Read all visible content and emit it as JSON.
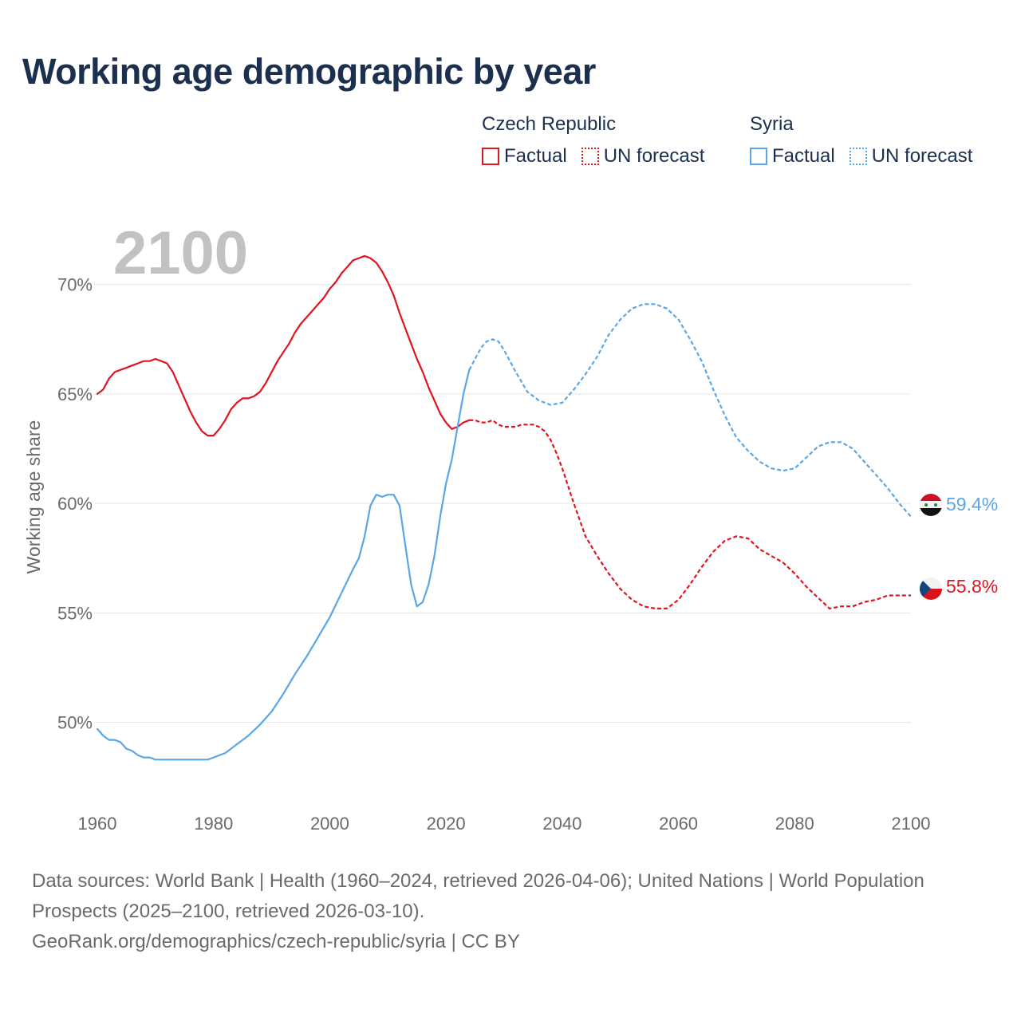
{
  "title": "Working age demographic by year",
  "legend": {
    "groups": [
      {
        "name": "Czech Republic",
        "color": "#e0141e",
        "items": [
          {
            "label": "Factual",
            "style": "solid"
          },
          {
            "label": "UN forecast",
            "style": "dotted"
          }
        ]
      },
      {
        "name": "Syria",
        "color": "#5aa6e6",
        "items": [
          {
            "label": "Factual",
            "style": "solid"
          },
          {
            "label": "UN forecast",
            "style": "dotted"
          }
        ]
      }
    ]
  },
  "year_watermark": "2100",
  "source": {
    "line1": "Data sources: World Bank | Health (1960–2024, retrieved 2026-04-06); United Nations | World Population Prospects (2025–2100, retrieved 2026-03-10).",
    "line2": "GeoRank.org/demographics/czech-republic/syria | CC BY"
  },
  "chart_data": {
    "type": "line",
    "title": "Working age demographic by year",
    "xlabel": "",
    "ylabel": "Working age share",
    "xlim": [
      1960,
      2100
    ],
    "ylim": [
      46.2,
      72.5
    ],
    "x_ticks": [
      1960,
      1980,
      2000,
      2020,
      2040,
      2060,
      2080,
      2100
    ],
    "y_ticks": [
      50,
      55,
      60,
      65,
      70
    ],
    "y_tick_labels": [
      "50%",
      "55%",
      "60%",
      "65%",
      "70%"
    ],
    "grid": true,
    "series": [
      {
        "name": "Czech Republic",
        "color": "#e0141e",
        "end_label": "55.8%",
        "factual": {
          "x": [
            1960,
            1961,
            1962,
            1963,
            1964,
            1965,
            1966,
            1967,
            1968,
            1969,
            1970,
            1971,
            1972,
            1973,
            1974,
            1975,
            1976,
            1977,
            1978,
            1979,
            1980,
            1981,
            1982,
            1983,
            1984,
            1985,
            1986,
            1987,
            1988,
            1989,
            1990,
            1991,
            1992,
            1993,
            1994,
            1995,
            1996,
            1997,
            1998,
            1999,
            2000,
            2001,
            2002,
            2003,
            2004,
            2005,
            2006,
            2007,
            2008,
            2009,
            2010,
            2011,
            2012,
            2013,
            2014,
            2015,
            2016,
            2017,
            2018,
            2019,
            2020,
            2021,
            2022,
            2023,
            2024
          ],
          "y": [
            65.0,
            65.2,
            65.7,
            66.0,
            66.1,
            66.2,
            66.3,
            66.4,
            66.5,
            66.5,
            66.6,
            66.5,
            66.4,
            66.0,
            65.4,
            64.8,
            64.2,
            63.7,
            63.3,
            63.1,
            63.1,
            63.4,
            63.8,
            64.3,
            64.6,
            64.8,
            64.8,
            64.9,
            65.1,
            65.5,
            66.0,
            66.5,
            66.9,
            67.3,
            67.8,
            68.2,
            68.5,
            68.8,
            69.1,
            69.4,
            69.8,
            70.1,
            70.5,
            70.8,
            71.1,
            71.2,
            71.3,
            71.2,
            71.0,
            70.6,
            70.1,
            69.5,
            68.7,
            68.0,
            67.3,
            66.6,
            66.0,
            65.3,
            64.7,
            64.1,
            63.7,
            63.4,
            63.5,
            63.7,
            63.8
          ]
        },
        "forecast": {
          "x": [
            2024,
            2025,
            2026,
            2027,
            2028,
            2029,
            2030,
            2031,
            2032,
            2033,
            2034,
            2035,
            2036,
            2037,
            2038,
            2039,
            2040,
            2042,
            2044,
            2046,
            2048,
            2050,
            2052,
            2054,
            2056,
            2058,
            2059,
            2060,
            2062,
            2064,
            2066,
            2068,
            2070,
            2072,
            2074,
            2076,
            2078,
            2080,
            2082,
            2084,
            2086,
            2088,
            2090,
            2092,
            2094,
            2096,
            2098,
            2100
          ],
          "y": [
            63.8,
            63.8,
            63.7,
            63.7,
            63.8,
            63.6,
            63.5,
            63.5,
            63.5,
            63.6,
            63.6,
            63.6,
            63.5,
            63.3,
            62.9,
            62.3,
            61.6,
            60.0,
            58.5,
            57.6,
            56.8,
            56.1,
            55.6,
            55.3,
            55.2,
            55.2,
            55.4,
            55.6,
            56.3,
            57.1,
            57.8,
            58.3,
            58.5,
            58.4,
            57.9,
            57.6,
            57.3,
            56.8,
            56.2,
            55.7,
            55.2,
            55.3,
            55.3,
            55.5,
            55.6,
            55.8,
            55.8,
            55.8
          ]
        }
      },
      {
        "name": "Syria",
        "color": "#5aa6e6",
        "end_label": "59.4%",
        "factual": {
          "x": [
            1960,
            1961,
            1962,
            1963,
            1964,
            1965,
            1966,
            1967,
            1968,
            1969,
            1970,
            1972,
            1974,
            1976,
            1978,
            1979,
            1980,
            1982,
            1984,
            1986,
            1988,
            1990,
            1992,
            1994,
            1996,
            1998,
            2000,
            2002,
            2004,
            2005,
            2006,
            2007,
            2008,
            2009,
            2010,
            2011,
            2012,
            2013,
            2014,
            2015,
            2016,
            2017,
            2018,
            2019,
            2020,
            2021,
            2022,
            2023,
            2024
          ],
          "y": [
            49.7,
            49.4,
            49.2,
            49.2,
            49.1,
            48.8,
            48.7,
            48.5,
            48.4,
            48.4,
            48.3,
            48.3,
            48.3,
            48.3,
            48.3,
            48.3,
            48.4,
            48.6,
            49.0,
            49.4,
            49.9,
            50.5,
            51.3,
            52.2,
            53.0,
            53.9,
            54.8,
            55.9,
            57.0,
            57.5,
            58.5,
            59.9,
            60.4,
            60.3,
            60.4,
            60.4,
            59.9,
            58.1,
            56.3,
            55.3,
            55.5,
            56.3,
            57.6,
            59.4,
            60.9,
            62.0,
            63.5,
            65.0,
            66.1
          ]
        },
        "forecast": {
          "x": [
            2024,
            2025,
            2026,
            2027,
            2028,
            2029,
            2030,
            2032,
            2034,
            2036,
            2038,
            2040,
            2042,
            2044,
            2046,
            2048,
            2050,
            2052,
            2054,
            2056,
            2058,
            2060,
            2062,
            2064,
            2066,
            2068,
            2070,
            2072,
            2074,
            2076,
            2078,
            2080,
            2082,
            2084,
            2086,
            2088,
            2090,
            2092,
            2094,
            2096,
            2098,
            2100
          ],
          "y": [
            66.1,
            66.6,
            67.1,
            67.4,
            67.5,
            67.4,
            67.0,
            66.0,
            65.1,
            64.7,
            64.5,
            64.6,
            65.2,
            65.9,
            66.7,
            67.7,
            68.4,
            68.9,
            69.1,
            69.1,
            68.9,
            68.4,
            67.5,
            66.5,
            65.2,
            64.0,
            63.0,
            62.4,
            61.9,
            61.6,
            61.5,
            61.6,
            62.1,
            62.6,
            62.8,
            62.8,
            62.5,
            61.9,
            61.3,
            60.7,
            60.0,
            59.4
          ]
        }
      }
    ]
  }
}
